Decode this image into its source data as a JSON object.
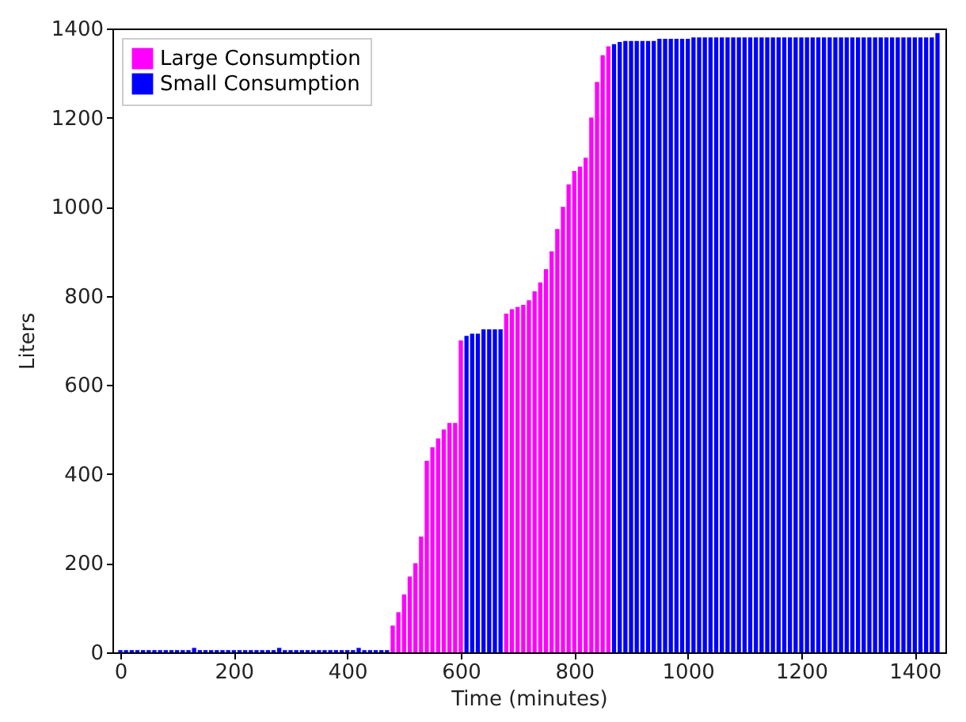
{
  "chart_data": {
    "type": "bar",
    "xlabel": "Time (minutes)",
    "ylabel": "Liters",
    "x": [
      0,
      10,
      20,
      30,
      40,
      50,
      60,
      70,
      80,
      90,
      100,
      110,
      120,
      130,
      140,
      150,
      160,
      170,
      180,
      190,
      200,
      210,
      220,
      230,
      240,
      250,
      260,
      270,
      280,
      290,
      300,
      310,
      320,
      330,
      340,
      350,
      360,
      370,
      380,
      390,
      400,
      410,
      420,
      430,
      440,
      450,
      460,
      470,
      480,
      490,
      500,
      510,
      520,
      530,
      540,
      550,
      560,
      570,
      580,
      590,
      600,
      610,
      620,
      630,
      640,
      650,
      660,
      670,
      680,
      690,
      700,
      710,
      720,
      730,
      740,
      750,
      760,
      770,
      780,
      790,
      800,
      810,
      820,
      830,
      840,
      850,
      860,
      870,
      880,
      890,
      900,
      910,
      920,
      930,
      940,
      950,
      960,
      970,
      980,
      990,
      1000,
      1010,
      1020,
      1030,
      1040,
      1050,
      1060,
      1070,
      1080,
      1090,
      1100,
      1110,
      1120,
      1130,
      1140,
      1150,
      1160,
      1170,
      1180,
      1190,
      1200,
      1210,
      1220,
      1230,
      1240,
      1250,
      1260,
      1270,
      1280,
      1290,
      1300,
      1310,
      1320,
      1330,
      1340,
      1350,
      1360,
      1370,
      1380,
      1390,
      1400,
      1410,
      1420,
      1430,
      1440
    ],
    "series": [
      {
        "name": "Large Consumption",
        "color": "#ff00ff",
        "values": [
          null,
          null,
          null,
          null,
          null,
          null,
          null,
          null,
          null,
          null,
          null,
          null,
          null,
          null,
          null,
          null,
          null,
          null,
          null,
          null,
          null,
          null,
          null,
          null,
          null,
          null,
          null,
          null,
          null,
          null,
          null,
          null,
          null,
          null,
          null,
          null,
          null,
          null,
          null,
          null,
          null,
          null,
          null,
          null,
          null,
          null,
          null,
          null,
          60,
          90,
          130,
          170,
          200,
          260,
          430,
          460,
          480,
          500,
          515,
          515,
          700,
          null,
          null,
          null,
          null,
          null,
          null,
          null,
          760,
          770,
          775,
          780,
          790,
          810,
          830,
          860,
          900,
          950,
          1000,
          1050,
          1080,
          1090,
          1110,
          1200,
          1280,
          1340,
          1360,
          null,
          null,
          null,
          null,
          null,
          null,
          null,
          null,
          null,
          null,
          null,
          null,
          null,
          null,
          null,
          null,
          null,
          null,
          null,
          null,
          null,
          null,
          null,
          null,
          null,
          null,
          null,
          null,
          null,
          null,
          null,
          null,
          null,
          null,
          null,
          null,
          null,
          null,
          null,
          null,
          null,
          null,
          null,
          null,
          null,
          null,
          null,
          null,
          null,
          null,
          null,
          null,
          null,
          null,
          null,
          null,
          null,
          null
        ]
      },
      {
        "name": "Small Consumption",
        "color": "#0000ff",
        "values": [
          5,
          5,
          5,
          5,
          5,
          5,
          5,
          5,
          5,
          5,
          5,
          5,
          5,
          10,
          5,
          5,
          5,
          5,
          5,
          5,
          5,
          5,
          5,
          5,
          5,
          5,
          5,
          5,
          10,
          5,
          5,
          5,
          5,
          5,
          5,
          5,
          5,
          5,
          5,
          5,
          5,
          5,
          10,
          5,
          5,
          5,
          5,
          5,
          null,
          null,
          null,
          null,
          null,
          null,
          null,
          null,
          null,
          null,
          null,
          null,
          null,
          710,
          715,
          715,
          725,
          725,
          725,
          725,
          null,
          null,
          null,
          null,
          null,
          null,
          null,
          null,
          null,
          null,
          null,
          null,
          null,
          null,
          null,
          null,
          null,
          null,
          null,
          1365,
          1370,
          1372,
          1372,
          1372,
          1372,
          1372,
          1372,
          1377,
          1377,
          1377,
          1377,
          1377,
          1377,
          1380,
          1380,
          1380,
          1380,
          1380,
          1380,
          1380,
          1380,
          1380,
          1380,
          1380,
          1380,
          1380,
          1380,
          1380,
          1380,
          1380,
          1380,
          1380,
          1380,
          1380,
          1380,
          1380,
          1380,
          1380,
          1380,
          1380,
          1380,
          1380,
          1380,
          1380,
          1380,
          1380,
          1380,
          1380,
          1380,
          1380,
          1380,
          1380,
          1380,
          1380,
          1380,
          1380,
          1390
        ]
      }
    ],
    "xlim": [
      0,
      1440
    ],
    "xticks": [
      0,
      200,
      400,
      600,
      800,
      1000,
      1200,
      1400
    ],
    "ylim": [
      0,
      1400
    ],
    "yticks": [
      0,
      200,
      400,
      600,
      800,
      1000,
      1200,
      1400
    ],
    "legend": "top left"
  }
}
